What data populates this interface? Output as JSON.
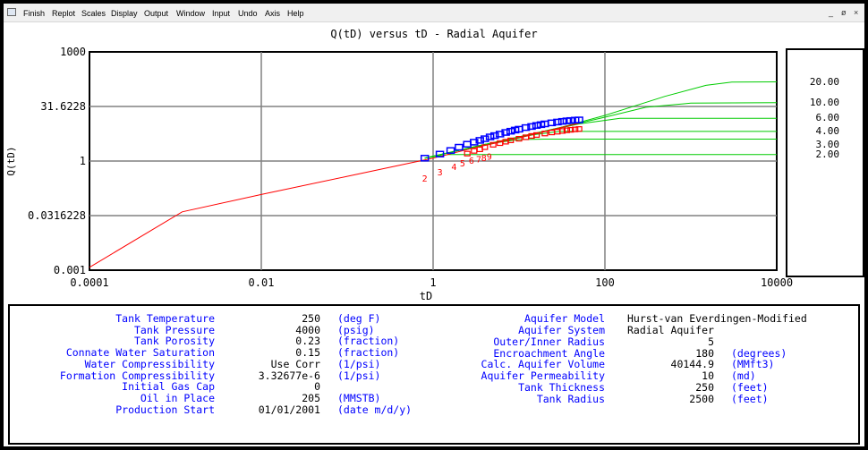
{
  "menu": {
    "items": [
      "Finish",
      "Replot",
      "Scales",
      "Display",
      "Output",
      "Window",
      "Input",
      "Undo",
      "Axis",
      "Help"
    ],
    "minimize": "_",
    "restore": "ø",
    "close": "×"
  },
  "chart_data": {
    "type": "line",
    "title": "Q(tD) versus tD - Radial Aquifer",
    "xlabel": "tD",
    "ylabel": "Q(tD)",
    "xscale": "log",
    "yscale": "log",
    "xlim": [
      0.0001,
      10000
    ],
    "ylim": [
      0.001,
      1000
    ],
    "x_tick_labels": [
      "0.0001",
      "0.01",
      "1",
      "100",
      "10000"
    ],
    "y_tick_labels": [
      "1000",
      "31.6228",
      "1",
      "0.0316228",
      "0.001"
    ],
    "grid": true,
    "color_infinite": "#ff0000",
    "color_bounded": "#00cc00",
    "color_markers": "#0000ff",
    "color_numbers": "#ff0000",
    "infinite_curve": {
      "name": "",
      "x": [
        0.0001,
        0.0012,
        0.01,
        0.1,
        1,
        3,
        10,
        50
      ],
      "y": [
        0.0012,
        0.04,
        0.12,
        0.38,
        1.2,
        2.3,
        4.3,
        11.0
      ]
    },
    "bounded_curves": [
      {
        "label": "20.00",
        "x": [
          0.8,
          5,
          30,
          100,
          500,
          1500,
          3000,
          10000
        ],
        "y": [
          1.2,
          3.2,
          8.3,
          18,
          60,
          120,
          148,
          150
        ]
      },
      {
        "label": "10.00",
        "x": [
          0.8,
          5,
          30,
          100,
          300,
          1000,
          10000
        ],
        "y": [
          1.2,
          3.2,
          8.3,
          16,
          30,
          39,
          40
        ]
      },
      {
        "label": "6.00",
        "x": [
          0.8,
          5,
          20,
          50,
          150,
          10000
        ],
        "y": [
          1.2,
          3.2,
          6.5,
          10.5,
          15,
          15
        ]
      },
      {
        "label": "4.00",
        "x": [
          0.8,
          5,
          15,
          30,
          10000
        ],
        "y": [
          1.2,
          3.2,
          5.3,
          6.5,
          6.5
        ]
      },
      {
        "label": "3.00",
        "x": [
          0.8,
          4,
          10,
          20,
          10000
        ],
        "y": [
          1.2,
          2.9,
          3.9,
          4.0,
          4.0
        ]
      },
      {
        "label": "2.00",
        "x": [
          0.8,
          1.5,
          3,
          10000
        ],
        "y": [
          1.2,
          1.5,
          1.5,
          1.5
        ]
      }
    ],
    "numbered_points": {
      "labels": [
        "2",
        "3",
        "4",
        "5",
        "6",
        "7",
        "8",
        "9"
      ],
      "x": [
        0.8,
        1.2,
        1.75,
        2.2,
        2.8,
        3.4,
        3.9,
        4.5
      ],
      "y": [
        0.34,
        0.5,
        0.72,
        0.9,
        1.05,
        1.15,
        1.25,
        1.35
      ]
    },
    "markers_upper": {
      "x": [
        0.8,
        1.2,
        1.6,
        2.0,
        2.5,
        3.0,
        3.5,
        4.0,
        4.6,
        5.2,
        6,
        7,
        8,
        9,
        10,
        12,
        14,
        16,
        18,
        20,
        24,
        28,
        32,
        36,
        40,
        45,
        50
      ],
      "y": [
        1.2,
        1.55,
        1.95,
        2.4,
        2.9,
        3.3,
        3.7,
        4.1,
        4.6,
        5.0,
        5.5,
        6.1,
        6.6,
        7.1,
        7.5,
        8.3,
        8.9,
        9.5,
        10.0,
        10.5,
        11.2,
        11.8,
        12.3,
        12.7,
        13.0,
        13.3,
        13.5
      ]
    },
    "markers_lower": {
      "x": [
        2.5,
        3,
        3.5,
        4,
        5,
        6,
        7,
        8,
        10,
        12,
        14,
        16,
        20,
        24,
        28,
        32,
        36,
        40,
        45,
        50
      ],
      "y": [
        1.6,
        1.9,
        2.1,
        2.4,
        2.8,
        3.1,
        3.4,
        3.7,
        4.1,
        4.5,
        4.9,
        5.2,
        5.7,
        6.1,
        6.4,
        6.7,
        7.0,
        7.2,
        7.4,
        7.6
      ]
    }
  },
  "tank": {
    "rows": [
      {
        "label": "Tank Temperature",
        "value": "250",
        "unit": "(deg F)"
      },
      {
        "label": "Tank Pressure",
        "value": "4000",
        "unit": "(psig)"
      },
      {
        "label": "Tank Porosity",
        "value": "0.23",
        "unit": "(fraction)"
      },
      {
        "label": "Connate Water Saturation",
        "value": "0.15",
        "unit": "(fraction)"
      },
      {
        "label": "Water Compressibility",
        "value": "Use Corr",
        "unit": "(1/psi)"
      },
      {
        "label": "Formation Compressibility",
        "value": "3.32677e-6",
        "unit": "(1/psi)"
      },
      {
        "label": "Initial Gas Cap",
        "value": "0",
        "unit": ""
      },
      {
        "label": "Oil in Place",
        "value": "205",
        "unit": "(MMSTB)"
      },
      {
        "label": "Production Start",
        "value": "01/01/2001",
        "unit": "(date m/d/y)"
      }
    ]
  },
  "aquifer": {
    "model_label": "Aquifer Model",
    "model_value": "Hurst-van Everdingen-Modified",
    "system_label": "Aquifer System",
    "system_value": "Radial Aquifer",
    "rows": [
      {
        "label": "Outer/Inner Radius",
        "value": "5",
        "unit": ""
      },
      {
        "label": "Encroachment Angle",
        "value": "180",
        "unit": "(degrees)"
      },
      {
        "label": "Calc. Aquifer Volume",
        "value": "40144.9",
        "unit": "(MMft3)"
      },
      {
        "label": "Aquifer Permeability",
        "value": "10",
        "unit": "(md)"
      },
      {
        "label": "Tank Thickness",
        "value": "250",
        "unit": "(feet)"
      },
      {
        "label": "Tank Radius",
        "value": "2500",
        "unit": "(feet)"
      }
    ]
  }
}
